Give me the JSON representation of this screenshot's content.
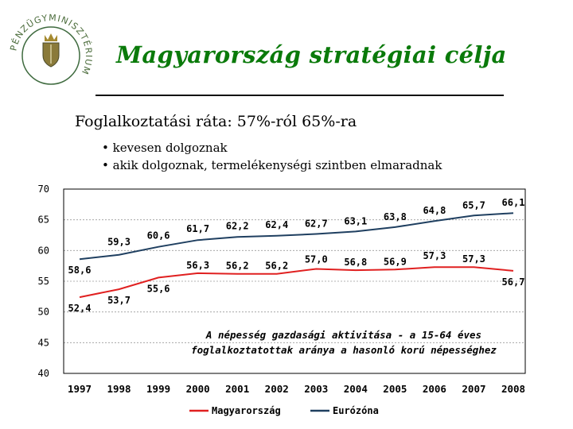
{
  "logo": {
    "ring_text": "PÉNZÜGYMINISZTÉRIUM"
  },
  "title": "Magyarország stratégiai célja",
  "subtitle": "Foglalkoztatási ráta: 57%-ról 65%-ra",
  "bullets": [
    "kevesen dolgoznak",
    "akik dolgoznak, termelékenységi szintben elmaradnak"
  ],
  "chart_data": {
    "type": "line",
    "x": [
      "1997",
      "1998",
      "1999",
      "2000",
      "2001",
      "2002",
      "2003",
      "2004",
      "2005",
      "2006",
      "2007",
      "2008"
    ],
    "ylim": [
      40,
      70
    ],
    "yticks": [
      "70",
      "65",
      "60",
      "55",
      "50",
      "45",
      "40"
    ],
    "grid": true,
    "legend_position": "bottom",
    "annotation": "A népesség gazdasági aktivitása - a 15-64 éves foglalkoztatottak aránya a hasonló korú népességhez",
    "series": [
      {
        "name": "Magyarország",
        "color": "#e02020",
        "values": [
          52.4,
          53.7,
          55.6,
          56.3,
          56.2,
          56.2,
          57.0,
          56.8,
          56.9,
          57.3,
          57.3,
          56.7
        ],
        "labels": [
          "52,4",
          "53,7",
          "55,6",
          "56,3",
          "56,2",
          "56,2",
          "57,0",
          "56,8",
          "56,9",
          "57,3",
          "57,3",
          "56,7"
        ]
      },
      {
        "name": "Eurózóna",
        "color": "#1f3f60",
        "values": [
          58.6,
          59.3,
          60.6,
          61.7,
          62.2,
          62.4,
          62.7,
          63.1,
          63.8,
          64.8,
          65.7,
          66.1
        ],
        "labels": [
          "58,6",
          "59,3",
          "60,6",
          "61,7",
          "62,2",
          "62,4",
          "62,7",
          "63,1",
          "63,8",
          "64,8",
          "65,7",
          "66,1"
        ]
      }
    ]
  }
}
